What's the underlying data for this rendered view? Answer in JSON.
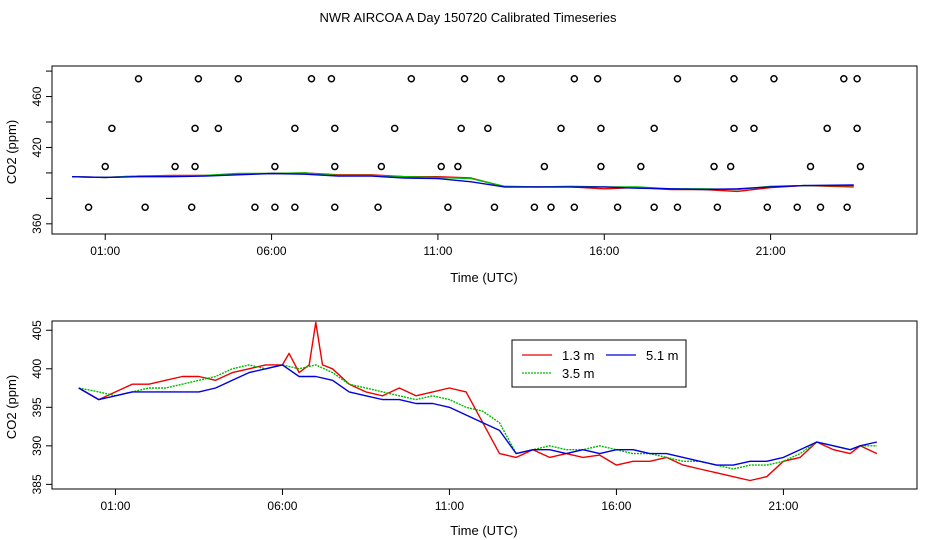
{
  "figure_title": "NWR AIRCOA A  Day 150720  Calibrated Timeseries",
  "colors": {
    "s13": "#ee0000",
    "s35": "#00bb00",
    "s51": "#0000dd",
    "axis": "#000000"
  },
  "chart_data": [
    {
      "type": "line",
      "title": "",
      "xlabel": "Time (UTC)",
      "ylabel": "CO2 (ppm)",
      "xlim": [
        -0.6,
        25.4
      ],
      "ylim": [
        352,
        484
      ],
      "xticks": [
        1,
        6,
        11,
        16,
        21
      ],
      "xtick_labels": [
        "01:00",
        "06:00",
        "11:00",
        "16:00",
        "21:00"
      ],
      "yticks": [
        360,
        380,
        400,
        420,
        440,
        460,
        480
      ],
      "ytick_labels": [
        "360",
        "",
        "",
        "420",
        "",
        "460",
        ""
      ],
      "grid": false,
      "series": [
        {
          "name": "1.3 m",
          "color": "#ee0000",
          "x": [
            0,
            1,
            2,
            3,
            4,
            5,
            6,
            7,
            8,
            9,
            10,
            11,
            12,
            13,
            14,
            15,
            16,
            17,
            18,
            19,
            20,
            21,
            22,
            23.5
          ],
          "y": [
            397,
            396.5,
            397.5,
            398,
            398,
            399,
            399.5,
            400,
            398.5,
            398.5,
            397,
            397,
            396,
            389,
            389,
            389,
            387.5,
            388.5,
            387,
            387,
            385.5,
            388.5,
            390,
            389
          ]
        },
        {
          "name": "3.5 m",
          "color": "#00bb00",
          "x": [
            0,
            1,
            2,
            3,
            4,
            5,
            6,
            7,
            8,
            9,
            10,
            11,
            12,
            13,
            14,
            15,
            16,
            17,
            18,
            19,
            20,
            21,
            22,
            23.5
          ],
          "y": [
            397,
            396.5,
            397.5,
            397.5,
            398,
            399.5,
            399.5,
            400,
            398,
            398,
            397,
            396.5,
            395.5,
            389.5,
            389,
            389.5,
            389,
            389,
            387.5,
            387.5,
            387,
            389.5,
            390,
            390
          ]
        },
        {
          "name": "5.1 m",
          "color": "#0000dd",
          "x": [
            0,
            1,
            2,
            3,
            4,
            5,
            6,
            7,
            8,
            9,
            10,
            11,
            12,
            13,
            14,
            15,
            16,
            17,
            18,
            19,
            20,
            21,
            22,
            23.5
          ],
          "y": [
            397,
            396.5,
            397,
            397,
            397.5,
            398.5,
            399.5,
            399,
            397.5,
            397.5,
            396,
            395.5,
            393,
            389,
            389,
            389,
            389,
            388,
            387.5,
            387,
            387.5,
            389,
            390,
            390.5
          ]
        }
      ],
      "flag_points": [
        {
          "label": "o",
          "x": [
            0.5,
            2.2,
            3.6,
            5.5,
            6.1,
            6.7,
            7.9,
            9.2,
            11.3,
            12.7,
            13.9,
            14.4,
            15.1,
            16.4,
            17.5,
            18.2,
            19.4,
            20.9,
            21.8,
            22.5,
            23.3
          ],
          "y": [
            373,
            373,
            373,
            373,
            373,
            373,
            373,
            373,
            373,
            373,
            373,
            373,
            373,
            373,
            373,
            373,
            373,
            373,
            373,
            373,
            373
          ]
        }
      ]
    },
    {
      "type": "line",
      "title": "",
      "xlabel": "Time (UTC)",
      "ylabel": "CO2 (ppm)",
      "xlim": [
        -0.9,
        25.0
      ],
      "ylim": [
        384.4,
        406.2
      ],
      "xticks": [
        1,
        6,
        11,
        16,
        21
      ],
      "xtick_labels": [
        "01:00",
        "06:00",
        "11:00",
        "16:00",
        "21:00"
      ],
      "yticks": [
        385,
        390,
        395,
        400,
        405
      ],
      "ytick_labels": [
        "385",
        "390",
        "395",
        "400",
        "405"
      ],
      "grid": false,
      "legend": {
        "position": "top-center-right",
        "entries": [
          "1.3 m",
          "3.5 m",
          "5.1 m"
        ]
      },
      "series": [
        {
          "name": "1.3 m",
          "color": "#ee0000",
          "x": [
            -0.1,
            0.5,
            1,
            1.5,
            2,
            2.5,
            3,
            3.5,
            4,
            4.5,
            5,
            5.5,
            6,
            6.2,
            6.5,
            6.8,
            7,
            7.2,
            7.5,
            8,
            8.5,
            9,
            9.5,
            10,
            10.5,
            11,
            11.5,
            12,
            12.5,
            13,
            13.5,
            14,
            14.5,
            15,
            15.5,
            16,
            16.5,
            17,
            17.5,
            18,
            18.5,
            19,
            19.5,
            20,
            20.5,
            21,
            21.5,
            22,
            22.5,
            23,
            23.3,
            23.8
          ],
          "y": [
            397.5,
            396,
            397,
            398,
            398,
            398.5,
            399,
            399,
            398.5,
            399.5,
            400,
            400.5,
            400.5,
            402,
            399.5,
            400.5,
            406,
            400.5,
            400,
            398,
            397,
            396.5,
            397.5,
            396.5,
            397,
            397.5,
            397,
            393,
            389,
            388.5,
            389.5,
            388.5,
            389,
            388.5,
            388.8,
            387.5,
            388,
            388,
            388.5,
            387.5,
            387,
            386.5,
            386,
            385.5,
            386,
            388,
            388.5,
            390.5,
            389.5,
            389,
            390,
            389
          ]
        },
        {
          "name": "3.5 m",
          "color": "#00bb00",
          "x": [
            -0.1,
            0.5,
            1,
            1.5,
            2,
            2.5,
            3,
            3.5,
            4,
            4.5,
            5,
            5.5,
            6,
            6.5,
            7,
            7.5,
            8,
            8.5,
            9,
            9.5,
            10,
            10.5,
            11,
            11.5,
            12,
            12.5,
            13,
            13.5,
            14,
            14.5,
            15,
            15.5,
            16,
            16.5,
            17,
            17.5,
            18,
            18.5,
            19,
            19.5,
            20,
            20.5,
            21,
            21.5,
            22,
            22.5,
            23,
            23.3,
            23.8
          ],
          "y": [
            397.5,
            397,
            396.5,
            397,
            397.5,
            397.5,
            398,
            398.5,
            399,
            400,
            400.5,
            400,
            400.5,
            400,
            400.5,
            399.5,
            398,
            397.5,
            397,
            396.5,
            396,
            396.5,
            396,
            395,
            394.5,
            393,
            389,
            389.5,
            390,
            389.5,
            389.5,
            390,
            389.5,
            389,
            389,
            388.5,
            388,
            388,
            387.5,
            387,
            387.5,
            387.5,
            388,
            389,
            390.5,
            390,
            389.5,
            390,
            390
          ]
        },
        {
          "name": "5.1 m",
          "color": "#0000dd",
          "x": [
            -0.1,
            0.5,
            1,
            1.5,
            2,
            2.5,
            3,
            3.5,
            4,
            4.5,
            5,
            5.5,
            6,
            6.5,
            7,
            7.5,
            8,
            8.5,
            9,
            9.5,
            10,
            10.5,
            11,
            11.5,
            12,
            12.5,
            13,
            13.5,
            14,
            14.5,
            15,
            15.5,
            16,
            16.5,
            17,
            17.5,
            18,
            18.5,
            19,
            19.5,
            20,
            20.5,
            21,
            21.5,
            22,
            22.5,
            23,
            23.3,
            23.8
          ],
          "y": [
            397.5,
            396,
            396.5,
            397,
            397,
            397,
            397,
            397,
            397.5,
            398.5,
            399.5,
            400,
            400.5,
            399,
            399,
            398.5,
            397,
            396.5,
            396,
            396,
            395.5,
            395.5,
            395,
            394,
            393,
            392,
            389,
            389.5,
            389.5,
            389,
            389.5,
            389,
            389.5,
            389.5,
            389,
            389,
            388.5,
            388,
            387.5,
            387.5,
            388,
            388,
            388.5,
            389.5,
            390.5,
            390,
            389.5,
            390,
            390.5
          ]
        }
      ]
    }
  ]
}
